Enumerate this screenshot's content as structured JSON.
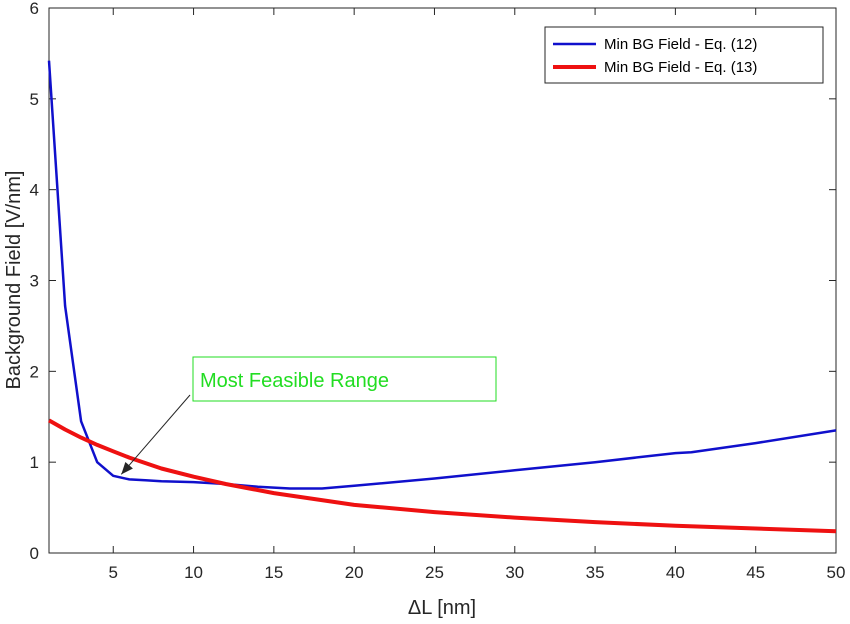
{
  "chart_data": {
    "type": "line",
    "xlabel": "ΔL [nm]",
    "ylabel": "Background Field [V/nm]",
    "xlim": [
      1,
      50
    ],
    "ylim": [
      0,
      6
    ],
    "xticks": [
      5,
      10,
      15,
      20,
      25,
      30,
      35,
      40,
      45,
      50
    ],
    "yticks": [
      0,
      1,
      2,
      3,
      4,
      5,
      6
    ],
    "grid": false,
    "legend_position": "top-right",
    "series": [
      {
        "name": "Min BG Field - Eq. (12)",
        "color": "#1010cc",
        "x": [
          1,
          2,
          3,
          4,
          5,
          6,
          7,
          8,
          10,
          12,
          14,
          16,
          18,
          20,
          25,
          30,
          35,
          40,
          41,
          45,
          50
        ],
        "y": [
          5.42,
          2.72,
          1.45,
          1.0,
          0.85,
          0.81,
          0.8,
          0.79,
          0.78,
          0.76,
          0.73,
          0.71,
          0.71,
          0.74,
          0.82,
          0.91,
          1.0,
          1.1,
          1.11,
          1.21,
          1.35
        ]
      },
      {
        "name": "Min BG Field - Eq. (13)",
        "color": "#ee1111",
        "x": [
          1,
          2,
          3,
          4,
          5,
          6,
          8,
          10,
          12,
          15,
          20,
          25,
          30,
          35,
          40,
          45,
          50
        ],
        "y": [
          1.46,
          1.36,
          1.27,
          1.19,
          1.12,
          1.05,
          0.93,
          0.84,
          0.76,
          0.66,
          0.53,
          0.45,
          0.39,
          0.34,
          0.3,
          0.27,
          0.24
        ]
      }
    ],
    "annotations": [
      {
        "text": "Most Feasible Range",
        "color": "#22dd22",
        "arrow_to": [
          5.5,
          0.8
        ]
      }
    ]
  }
}
